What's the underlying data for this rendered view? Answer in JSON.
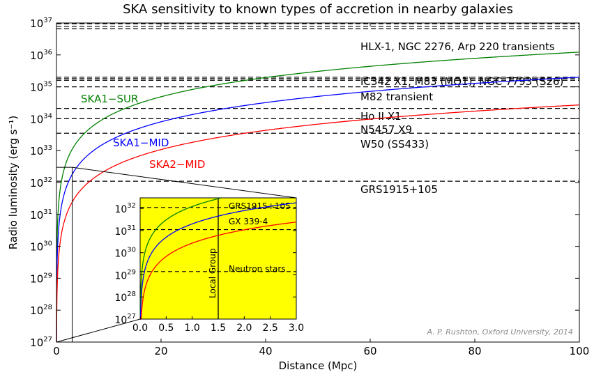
{
  "chart_data": {
    "type": "line",
    "title": "SKA sensitivity to known types of accretion in nearby galaxies",
    "xlabel": "Distance (Mpc)",
    "ylabel": "Radio luminosity (erg s⁻¹)",
    "xlim": [
      0,
      100
    ],
    "ylim": [
      1e+27,
      1e+37
    ],
    "yscale": "log",
    "grid": false,
    "x_ticks": [
      0,
      20,
      40,
      60,
      80,
      100
    ],
    "y_tick_exponents": [
      27,
      28,
      29,
      30,
      31,
      32,
      33,
      34,
      35,
      36,
      37
    ],
    "series": [
      {
        "name": "SKA1−SUR",
        "color": "#008000",
        "luminosity_at_1Mpc": 1.22e+32
      },
      {
        "name": "SKA1−MID",
        "color": "#0000ff",
        "luminosity_at_1Mpc": 2e+31
      },
      {
        "name": "SKA2−MID",
        "color": "#ff0000",
        "luminosity_at_1Mpc": 2.7e+30
      }
    ],
    "reference_levels": [
      {
        "label": "HLX-1, NGC 2276, Arp 220 transients",
        "values": [
          9.5e+36,
          7.8e+36,
          6.6e+36
        ]
      },
      {
        "label": "IC342 X1, M83 (MQ1), NGC 7793 (S26)",
        "values": [
          2e+35,
          1.8e+35,
          1.6e+35
        ]
      },
      {
        "label": "M82 transient",
        "values": [
          1e+35
        ]
      },
      {
        "label": "Ho II X1",
        "values": [
          2.1e+34
        ]
      },
      {
        "label": "N5457 X9",
        "values": [
          1e+34
        ]
      },
      {
        "label": "W50 (SS433)",
        "values": [
          3.5e+33
        ]
      },
      {
        "label": "GRS1915+105",
        "values": [
          1.1e+32
        ]
      }
    ],
    "inset": {
      "xlim": [
        0,
        3.0
      ],
      "ylim": [
        1e+27,
        3e+32
      ],
      "yscale": "log",
      "background": "#ffff00",
      "x_ticks": [
        0.0,
        0.5,
        1.0,
        1.5,
        2.0,
        2.5,
        3.0
      ],
      "y_tick_exponents": [
        27,
        28,
        29,
        30,
        31,
        32
      ],
      "reference_levels": [
        {
          "label": "GRS1915+105",
          "value": 1.1e+32
        },
        {
          "label": "GX 339-4",
          "value": 1.1e+31
        },
        {
          "label": "Neutron stars",
          "value": 1.4e+29
        }
      ],
      "local_group": {
        "label": "Local Group",
        "x": 1.5
      }
    },
    "annotations": [
      "A. P. Rushton, Oxford University, 2014"
    ]
  }
}
